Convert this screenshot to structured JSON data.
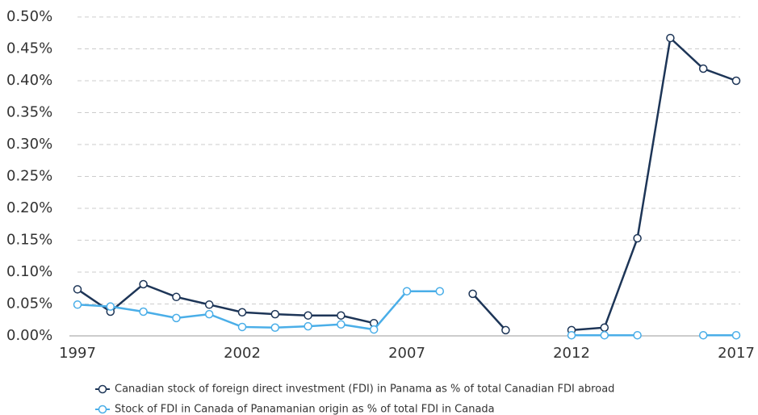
{
  "chart_data": {
    "type": "line",
    "x": [
      1997,
      1998,
      1999,
      2000,
      2001,
      2002,
      2003,
      2004,
      2005,
      2006,
      2007,
      2008,
      2009,
      2010,
      2011,
      2012,
      2013,
      2014,
      2015,
      2016,
      2017
    ],
    "xlim": [
      1997,
      2017
    ],
    "xticks": [
      1997,
      2002,
      2007,
      2012,
      2017
    ],
    "ylim": [
      0,
      0.5
    ],
    "yticks": [
      {
        "value": 0,
        "label": "0.00%"
      },
      {
        "value": 0.05,
        "label": "0.05%"
      },
      {
        "value": 0.1,
        "label": "0.10%"
      },
      {
        "value": 0.15,
        "label": "0.15%"
      },
      {
        "value": 0.2,
        "label": "0.20%"
      },
      {
        "value": 0.25,
        "label": "0.25%"
      },
      {
        "value": 0.3,
        "label": "0.30%"
      },
      {
        "value": 0.35,
        "label": "0.35%"
      },
      {
        "value": 0.4,
        "label": "0.40%"
      },
      {
        "value": 0.45,
        "label": "0.45%"
      },
      {
        "value": 0.5,
        "label": "0.50%"
      }
    ],
    "grid": true,
    "legend": "bottom",
    "series": [
      {
        "name": "Canadian stock of foreign direct investment (FDI) in Panama as % of total Canadian FDI abroad",
        "color": "#1d3557",
        "values": [
          0.073,
          0.038,
          0.081,
          0.061,
          0.049,
          0.037,
          0.034,
          0.032,
          0.032,
          0.02,
          null,
          null,
          0.066,
          0.009,
          null,
          0.009,
          0.013,
          0.153,
          0.467,
          0.419,
          0.4
        ]
      },
      {
        "name": "Stock of FDI in Canada of Panamanian origin as % of total FDI in Canada",
        "color": "#4aaee8",
        "values": [
          0.049,
          0.046,
          0.038,
          0.028,
          0.034,
          0.014,
          0.013,
          0.015,
          0.018,
          0.01,
          0.07,
          0.07,
          null,
          null,
          null,
          0.001,
          0.001,
          0.001,
          null,
          0.001,
          0.001
        ]
      }
    ]
  }
}
